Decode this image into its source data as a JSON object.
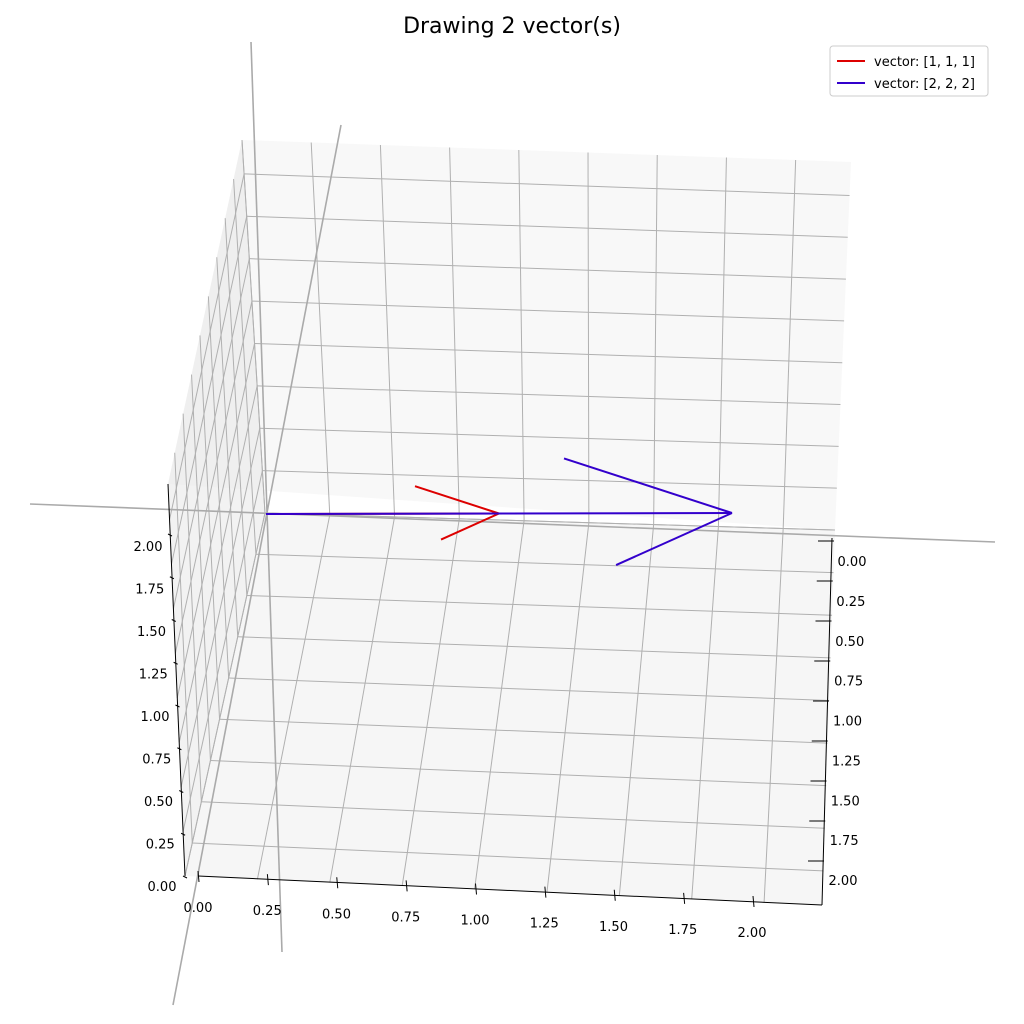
{
  "chart_data": {
    "type": "line",
    "projection": "3d",
    "title": "Drawing 2 vector(s)",
    "xlabel": "",
    "ylabel": "",
    "zlabel": "",
    "xlim": [
      0,
      2.2
    ],
    "ylim": [
      0,
      2.2
    ],
    "zlim": [
      0,
      2.2
    ],
    "x_ticks": [
      "0.00",
      "0.25",
      "0.50",
      "0.75",
      "1.00",
      "1.25",
      "1.50",
      "1.75",
      "2.00"
    ],
    "y_ticks": [
      "0.00",
      "0.25",
      "0.50",
      "0.75",
      "1.00",
      "1.25",
      "1.50",
      "1.75",
      "2.00"
    ],
    "z_ticks": [
      "0.00",
      "0.25",
      "0.50",
      "0.75",
      "1.00",
      "1.25",
      "1.50",
      "1.75",
      "2.00"
    ],
    "grid": true,
    "legend_position": "top-right",
    "series": [
      {
        "name": "vector: [1, 1, 1]",
        "vector": [
          1,
          1,
          1
        ],
        "color": "#dd0000"
      },
      {
        "name": "vector: [2, 2, 2]",
        "vector": [
          2,
          2,
          2
        ],
        "color": "#3300cc"
      }
    ],
    "pane_color": "#f2f2f2",
    "grid_color": "#b0b0b0",
    "guide_line_color": "#aaaaaa"
  }
}
